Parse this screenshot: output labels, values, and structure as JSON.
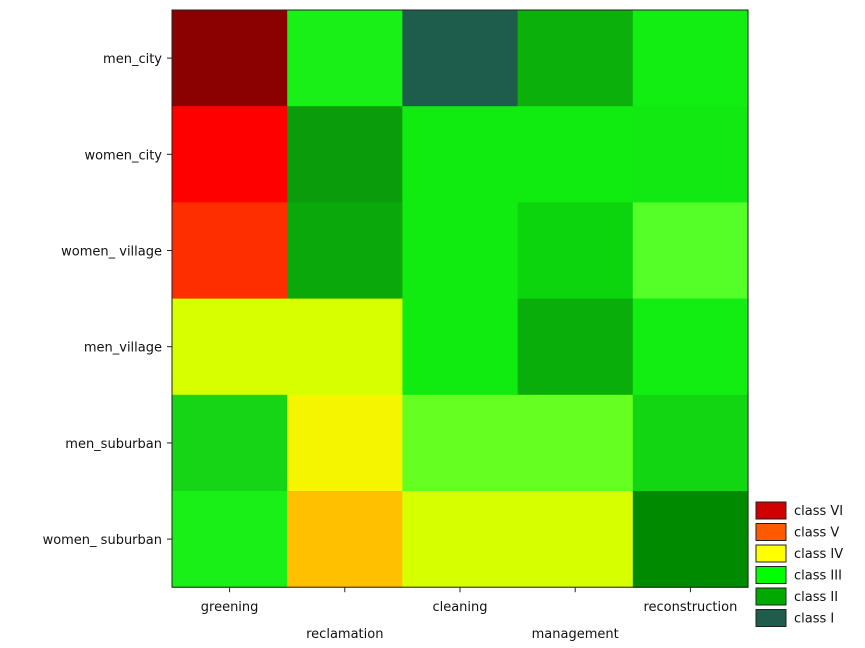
{
  "chart_data": {
    "type": "heatmap",
    "title": "",
    "xlabel": "",
    "ylabel": "",
    "x_categories": [
      "greening",
      "reclamation",
      "cleaning",
      "management",
      "reconstruction"
    ],
    "y_categories": [
      "men_city",
      "women_city",
      "women_ village",
      "men_village",
      "men_suburban",
      "women_ suburban"
    ],
    "color_scale": {
      "class VI": "#d00000",
      "class V": "#ff5a00",
      "class IV": "#ffff00",
      "class III": "#00ff00",
      "class II": "#00a800",
      "class I": "#1e5c4c"
    },
    "cells": [
      [
        "#8b0000",
        "#18f018",
        "#1e5c4c",
        "#0bb00b",
        "#12ee12"
      ],
      [
        "#ff0000",
        "#0a9c0a",
        "#10ec10",
        "#10ec10",
        "#12e812"
      ],
      [
        "#ff2e00",
        "#0aa80a",
        "#10ec10",
        "#0dd50d",
        "#55ff28"
      ],
      [
        "#d8ff00",
        "#d8ff00",
        "#10ec10",
        "#0aae0a",
        "#12ee12"
      ],
      [
        "#16d416",
        "#f5f500",
        "#66ff22",
        "#66ff22",
        "#12d612"
      ],
      [
        "#18f018",
        "#ffc000",
        "#d6ff00",
        "#d6ff00",
        "#008a00"
      ]
    ],
    "legend": {
      "position": "bottom-right",
      "entries": [
        {
          "label": "class VI",
          "color": "#d00000"
        },
        {
          "label": "class V",
          "color": "#ff5a00"
        },
        {
          "label": "class IV",
          "color": "#ffff00"
        },
        {
          "label": "class III",
          "color": "#00ff00"
        },
        {
          "label": "class II",
          "color": "#00a800"
        },
        {
          "label": "class I",
          "color": "#1e5c4c"
        }
      ]
    },
    "grid": false
  }
}
